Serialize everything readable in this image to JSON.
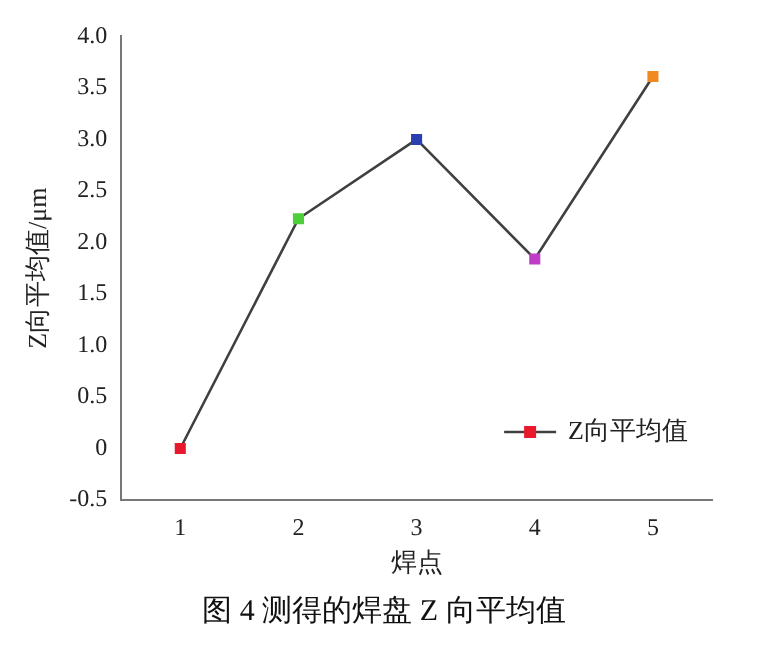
{
  "chart_data": {
    "type": "line",
    "x": [
      1,
      2,
      3,
      4,
      5
    ],
    "series": [
      {
        "name": "Z向平均值",
        "color": "#404040",
        "colors": [
          "#e8192c",
          "#4ccf3a",
          "#2a3fb0",
          "#c03cc8",
          "#f08a20"
        ],
        "values": [
          0,
          2.23,
          3.0,
          1.84,
          3.61
        ]
      }
    ],
    "xlabel": "焊点",
    "ylabel": "Z向平均值/μm",
    "xlim": [
      0.5,
      5.5
    ],
    "xticks": [
      1,
      2,
      3,
      4,
      5
    ],
    "ylim": [
      -0.5,
      4
    ],
    "yticks": [
      {
        "value": -0.5,
        "label": "-0.5"
      },
      0,
      0.5,
      {
        "value": 1,
        "label": "1.0"
      },
      1.5,
      {
        "value": 2,
        "label": "2.0"
      },
      2.5,
      {
        "value": 3,
        "label": "3.0"
      },
      3.5,
      {
        "value": 4,
        "label": "4.0"
      }
    ],
    "grid": false,
    "legend": "bottom right",
    "marker": "square",
    "line_style": "solid",
    "annotations": [
      "图 4  测得的焊盘 Z 向平均值"
    ]
  }
}
